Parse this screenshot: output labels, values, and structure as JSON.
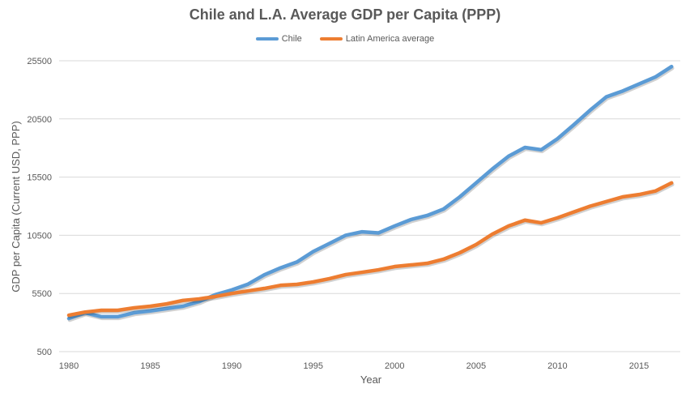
{
  "chart_data": {
    "type": "line",
    "title": "Chile and L.A. Average GDP per Capita (PPP)",
    "xlabel": "Year",
    "ylabel": "GDP per Capita (Current USD, PPP)",
    "ylim": [
      500,
      25500
    ],
    "yticks": [
      "500",
      "5500",
      "10500",
      "15500",
      "20500",
      "25500"
    ],
    "xticks": [
      "1980",
      "1985",
      "1990",
      "1995",
      "2000",
      "2005",
      "2010",
      "2015"
    ],
    "grid": true,
    "legend": "top",
    "x": [
      1980,
      1981,
      1982,
      1983,
      1984,
      1985,
      1986,
      1987,
      1988,
      1989,
      1990,
      1991,
      1992,
      1993,
      1994,
      1995,
      1996,
      1997,
      1998,
      1999,
      2000,
      2001,
      2002,
      2003,
      2004,
      2005,
      2006,
      2007,
      2008,
      2009,
      2010,
      2011,
      2012,
      2013,
      2014,
      2015,
      2016,
      2017
    ],
    "series": [
      {
        "name": "Chile",
        "color": "#5B9BD5",
        "values": [
          3350,
          3840,
          3500,
          3500,
          3840,
          4000,
          4200,
          4400,
          4800,
          5400,
          5800,
          6300,
          7100,
          7700,
          8200,
          9100,
          9800,
          10500,
          10800,
          10700,
          11300,
          11850,
          12200,
          12750,
          13800,
          15000,
          16200,
          17300,
          18050,
          17850,
          18800,
          20000,
          21250,
          22400,
          22900,
          23500,
          24100,
          25000
        ]
      },
      {
        "name": "Latin America average",
        "color": "#ED7D31",
        "values": [
          3630,
          3900,
          4050,
          4050,
          4260,
          4400,
          4600,
          4900,
          5030,
          5240,
          5500,
          5720,
          5930,
          6200,
          6280,
          6490,
          6770,
          7120,
          7320,
          7530,
          7810,
          7950,
          8090,
          8440,
          9000,
          9700,
          10600,
          11300,
          11800,
          11570,
          12000,
          12500,
          13000,
          13400,
          13800,
          14000,
          14300,
          15000
        ]
      }
    ]
  }
}
